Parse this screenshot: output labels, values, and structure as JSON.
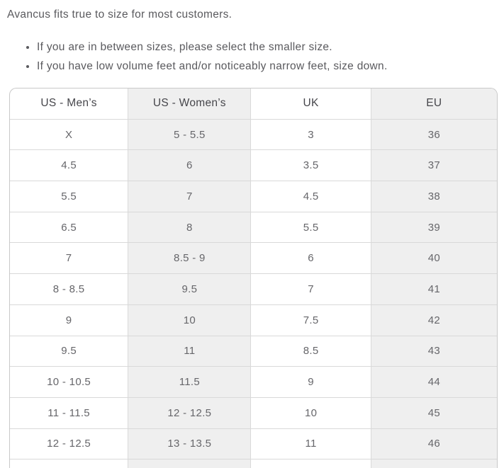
{
  "intro": {
    "text": "Avancus fits true to size for most customers.",
    "bullets": [
      "If you are in between sizes, please select the smaller size.",
      "If you have low volume feet and/or noticeably narrow feet, size down."
    ]
  },
  "size_table": {
    "columns": [
      "US - Men’s",
      "US - Women’s",
      "UK",
      "EU"
    ],
    "striped_columns": [
      1,
      3
    ],
    "rows": [
      [
        "X",
        "5 - 5.5",
        "3",
        "36"
      ],
      [
        "4.5",
        "6",
        "3.5",
        "37"
      ],
      [
        "5.5",
        "7",
        "4.5",
        "38"
      ],
      [
        "6.5",
        "8",
        "5.5",
        "39"
      ],
      [
        "7",
        "8.5 - 9",
        "6",
        "40"
      ],
      [
        "8 - 8.5",
        "9.5",
        "7",
        "41"
      ],
      [
        "9",
        "10",
        "7.5",
        "42"
      ],
      [
        "9.5",
        "11",
        "8.5",
        "43"
      ],
      [
        "10 - 10.5",
        "11.5",
        "9",
        "44"
      ],
      [
        "11 - 11.5",
        "12 - 12.5",
        "10",
        "45"
      ],
      [
        "12 - 12.5",
        "13 - 13.5",
        "11",
        "46"
      ]
    ],
    "colors": {
      "stripe_bg": "#efefef",
      "line": "#d9d9d9",
      "outer_border": "#c8c8c8",
      "header_text": "#46464b",
      "cell_text": "#66666a",
      "body_text": "#5a5a5e"
    }
  }
}
